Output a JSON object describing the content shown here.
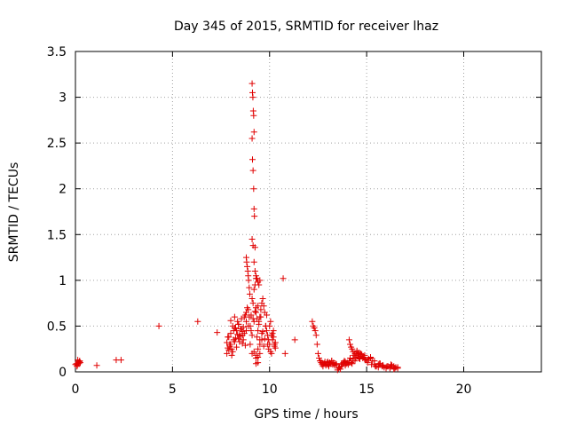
{
  "chart_data": {
    "type": "scatter",
    "title": "Day 345 of 2015, SRMTID for receiver lhaz",
    "xlabel": "GPS time / hours",
    "ylabel": "SRMTID / TECUs",
    "xlim": [
      0,
      24
    ],
    "ylim": [
      0,
      3.5
    ],
    "x_ticks": [
      0,
      5,
      10,
      15,
      20
    ],
    "y_ticks": [
      0,
      0.5,
      1,
      1.5,
      2,
      2.5,
      3,
      3.5
    ],
    "x_tick_labels": [
      "0",
      "5",
      "10",
      "15",
      "20"
    ],
    "y_tick_labels": [
      "0",
      "0.5",
      "1",
      "1.5",
      "2",
      "2.5",
      "3",
      "3.5"
    ],
    "grid": true,
    "marker": "plus",
    "color": "#e00000",
    "series": [
      {
        "x": [
          0.0,
          0.05,
          0.1,
          0.15,
          0.2,
          0.22,
          0.25,
          0.12,
          0.18,
          0.08,
          1.1,
          2.1,
          2.35,
          4.3,
          6.3,
          7.3,
          7.8,
          7.85,
          7.9,
          7.95,
          8.0,
          8.05,
          8.1,
          8.15,
          8.2,
          8.25,
          8.3,
          8.35,
          8.4,
          8.45,
          8.5,
          8.55,
          8.6,
          8.65,
          8.7,
          8.75,
          8.8,
          8.85,
          8.9,
          8.95,
          7.8,
          7.9,
          8.0,
          8.1,
          8.2,
          8.3,
          8.4,
          8.5,
          8.6,
          8.7,
          8.8,
          8.9,
          7.85,
          7.95,
          8.05,
          8.15,
          8.25,
          8.35,
          8.45,
          8.55,
          8.65,
          8.75,
          8.0,
          8.2,
          8.4,
          8.6,
          8.8,
          8.8,
          8.82,
          8.85,
          8.88,
          8.9,
          8.92,
          8.95,
          8.98,
          9.0,
          9.05,
          9.1,
          9.15,
          9.2,
          9.25,
          9.3,
          9.35,
          9.4,
          9.45,
          9.5,
          9.55,
          9.6,
          9.65,
          9.7,
          9.75,
          9.8,
          9.85,
          9.9,
          9.95,
          9.0,
          9.1,
          9.2,
          9.3,
          9.4,
          9.5,
          9.6,
          9.7,
          9.8,
          9.9,
          9.05,
          9.15,
          9.25,
          9.35,
          9.45,
          9.55,
          9.65,
          9.75,
          9.85,
          9.95,
          9.3,
          9.35,
          9.4,
          9.45,
          9.5,
          9.3,
          9.4,
          9.5,
          9.1,
          9.12,
          9.14,
          9.16,
          9.18,
          9.2,
          9.1,
          9.12,
          9.15,
          9.18,
          9.2,
          9.22,
          9.25,
          9.1,
          9.15,
          9.2,
          9.25,
          9.3,
          9.1,
          9.2,
          9.3,
          9.4,
          9.5,
          9.6,
          9.3,
          9.4,
          10.0,
          10.05,
          10.1,
          10.15,
          10.2,
          10.25,
          10.3,
          10.0,
          10.1,
          10.2,
          10.3,
          10.05,
          10.15,
          10.25,
          10.7,
          10.8,
          11.3,
          12.2,
          12.25,
          12.3,
          12.35,
          12.4,
          12.45,
          12.5,
          12.55,
          12.6,
          12.65,
          12.7,
          12.75,
          12.8,
          12.85,
          12.9,
          12.95,
          13.0,
          13.05,
          13.1,
          13.15,
          13.2,
          13.25,
          13.3,
          13.35,
          13.4,
          13.45,
          12.6,
          12.7,
          12.8,
          12.9,
          13.0,
          13.1,
          13.2,
          13.3,
          13.5,
          13.55,
          13.6,
          13.65,
          13.7,
          13.75,
          13.8,
          13.85,
          13.9,
          13.95,
          14.0,
          14.05,
          14.1,
          14.15,
          14.2,
          14.25,
          14.3,
          14.35,
          14.4,
          14.45,
          14.5,
          14.55,
          14.6,
          14.65,
          14.7,
          14.75,
          14.8,
          14.85,
          14.9,
          14.95,
          13.7,
          13.9,
          14.1,
          14.3,
          14.5,
          14.7,
          14.9,
          14.1,
          14.15,
          14.2,
          14.25,
          14.3,
          14.4,
          14.5,
          14.6,
          14.7,
          15.0,
          15.1,
          15.2,
          15.3,
          15.4,
          15.5,
          15.6,
          15.7,
          15.8,
          15.9,
          16.0,
          16.1,
          16.2,
          16.3,
          16.4,
          16.5,
          16.6,
          15.05,
          15.25,
          15.45,
          15.65,
          15.85,
          16.05,
          16.25,
          16.45,
          15.2,
          15.4,
          15.6,
          15.8,
          16.0,
          16.2,
          16.4,
          16.6
        ],
        "y": [
          0.08,
          0.09,
          0.07,
          0.1,
          0.11,
          0.12,
          0.1,
          0.13,
          0.09,
          0.06,
          0.07,
          0.13,
          0.13,
          0.5,
          0.55,
          0.43,
          0.32,
          0.26,
          0.38,
          0.28,
          0.42,
          0.18,
          0.5,
          0.35,
          0.6,
          0.48,
          0.45,
          0.55,
          0.52,
          0.4,
          0.47,
          0.58,
          0.44,
          0.49,
          0.6,
          0.62,
          0.65,
          0.7,
          0.68,
          0.6,
          0.2,
          0.24,
          0.3,
          0.22,
          0.33,
          0.27,
          0.36,
          0.39,
          0.31,
          0.42,
          0.45,
          0.5,
          0.38,
          0.3,
          0.25,
          0.45,
          0.37,
          0.41,
          0.33,
          0.47,
          0.35,
          0.29,
          0.56,
          0.48,
          0.52,
          0.4,
          0.55,
          1.25,
          1.2,
          1.15,
          1.1,
          1.05,
          1.0,
          0.92,
          0.85,
          0.5,
          0.62,
          0.8,
          0.75,
          0.9,
          0.95,
          0.7,
          0.58,
          0.45,
          0.55,
          0.6,
          0.68,
          0.75,
          0.8,
          0.72,
          0.65,
          0.5,
          0.45,
          0.4,
          0.35,
          0.3,
          0.4,
          0.55,
          0.65,
          0.72,
          0.35,
          0.42,
          0.28,
          0.5,
          0.3,
          0.45,
          0.58,
          0.66,
          0.38,
          0.52,
          0.6,
          0.44,
          0.36,
          0.62,
          0.25,
          1.05,
          1.02,
          0.98,
          0.95,
          1.0,
          0.15,
          0.1,
          0.2,
          3.15,
          3.05,
          3.0,
          2.85,
          2.8,
          2.62,
          2.55,
          2.32,
          2.2,
          2.0,
          1.78,
          1.7,
          1.36,
          1.45,
          1.38,
          1.2,
          1.1,
          1.02,
          0.2,
          0.22,
          0.18,
          0.25,
          0.3,
          0.35,
          0.09,
          0.16,
          0.3,
          0.22,
          0.4,
          0.35,
          0.45,
          0.28,
          0.32,
          0.5,
          0.2,
          0.38,
          0.26,
          0.55,
          0.42,
          0.3,
          1.02,
          0.2,
          0.35,
          0.55,
          0.5,
          0.48,
          0.45,
          0.4,
          0.3,
          0.2,
          0.15,
          0.12,
          0.1,
          0.08,
          0.06,
          0.09,
          0.11,
          0.07,
          0.1,
          0.08,
          0.06,
          0.1,
          0.09,
          0.12,
          0.08,
          0.1,
          0.07,
          0.09,
          0.08,
          0.12,
          0.1,
          0.09,
          0.08,
          0.11,
          0.1,
          0.12,
          0.09,
          0.02,
          0.04,
          0.05,
          0.03,
          0.06,
          0.08,
          0.1,
          0.12,
          0.07,
          0.09,
          0.1,
          0.08,
          0.12,
          0.15,
          0.1,
          0.09,
          0.14,
          0.18,
          0.12,
          0.16,
          0.2,
          0.18,
          0.15,
          0.14,
          0.17,
          0.19,
          0.15,
          0.16,
          0.14,
          0.13,
          0.09,
          0.11,
          0.1,
          0.12,
          0.22,
          0.2,
          0.18,
          0.35,
          0.3,
          0.27,
          0.25,
          0.22,
          0.2,
          0.23,
          0.21,
          0.19,
          0.13,
          0.14,
          0.15,
          0.12,
          0.08,
          0.06,
          0.05,
          0.09,
          0.07,
          0.05,
          0.04,
          0.06,
          0.05,
          0.07,
          0.03,
          0.05,
          0.04,
          0.1,
          0.08,
          0.06,
          0.09,
          0.07,
          0.06,
          0.08,
          0.04,
          0.16,
          0.12,
          0.08,
          0.06,
          0.05,
          0.04,
          0.06,
          0.05
        ]
      }
    ]
  }
}
